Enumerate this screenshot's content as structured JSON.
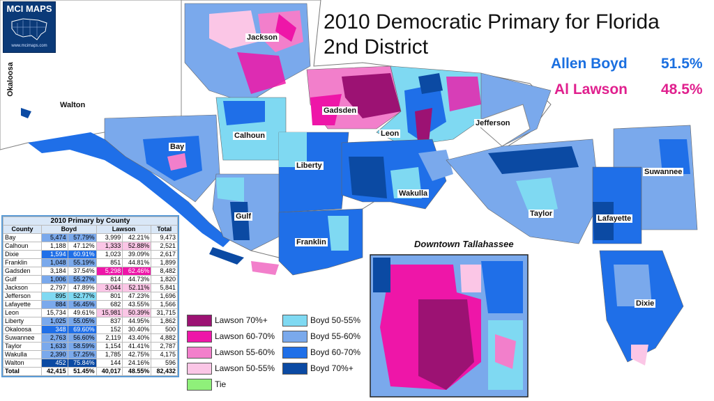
{
  "logo": {
    "text": "MCI MAPS",
    "url": "www.mcimaps.com"
  },
  "title": {
    "line1": "2010 Democratic Primary for Florida",
    "line2": "2nd District"
  },
  "candidates": [
    {
      "name": "Allen Boyd",
      "pct": "51.5%",
      "color": "#1a6fe0"
    },
    {
      "name": "Al Lawson",
      "pct": "48.5%",
      "color": "#e0208e"
    }
  ],
  "county_labels": {
    "okaloosa": "Okaloosa",
    "walton": "Walton",
    "jackson": "Jackson",
    "gadsden": "Gadsden",
    "calhoun": "Calhoun",
    "leon": "Leon",
    "jefferson": "Jefferson",
    "bay": "Bay",
    "liberty": "Liberty",
    "wakulla": "Wakulla",
    "suwannee": "Suwannee",
    "taylor": "Taylor",
    "lafayette": "Lafayette",
    "gulf": "Gulf",
    "franklin": "Franklin",
    "dixie": "Dixie"
  },
  "inset_title": "Downtown Tallahassee",
  "legend": [
    {
      "label": "Lawson 70%+",
      "color": "#9c1273"
    },
    {
      "label": "Lawson 60-70%",
      "color": "#ee16a8"
    },
    {
      "label": "Lawson 55-60%",
      "color": "#f27fcb"
    },
    {
      "label": "Lawson 50-55%",
      "color": "#fbc6e6"
    },
    {
      "label": "Tie",
      "color": "#8ff07a"
    },
    {
      "label": "Boyd 50-55%",
      "color": "#7fd9f2"
    },
    {
      "label": "Boyd 55-60%",
      "color": "#7aa9ec"
    },
    {
      "label": "Boyd 60-70%",
      "color": "#1f6fe8"
    },
    {
      "label": "Boyd 70%+",
      "color": "#0b4aa3"
    }
  ],
  "table": {
    "caption": "2010 Primary by County",
    "headers": [
      "County",
      "Boyd",
      "Lawson",
      "Total"
    ],
    "rows": [
      [
        "Bay",
        "5,474",
        "57.79%",
        "3,999",
        "42.21%",
        "9,473"
      ],
      [
        "Calhoun",
        "1,188",
        "47.12%",
        "1,333",
        "52.88%",
        "2,521"
      ],
      [
        "Dixie",
        "1,594",
        "60.91%",
        "1,023",
        "39.09%",
        "2,617"
      ],
      [
        "Franklin",
        "1,048",
        "55.19%",
        "851",
        "44.81%",
        "1,899"
      ],
      [
        "Gadsden",
        "3,184",
        "37.54%",
        "5,298",
        "62.46%",
        "8,482"
      ],
      [
        "Gulf",
        "1,006",
        "55.27%",
        "814",
        "44.73%",
        "1,820"
      ],
      [
        "Jackson",
        "2,797",
        "47.89%",
        "3,044",
        "52.11%",
        "5,841"
      ],
      [
        "Jefferson",
        "895",
        "52.77%",
        "801",
        "47.23%",
        "1,696"
      ],
      [
        "Lafayette",
        "884",
        "56.45%",
        "682",
        "43.55%",
        "1,566"
      ],
      [
        "Leon",
        "15,734",
        "49.61%",
        "15,981",
        "50.39%",
        "31,715"
      ],
      [
        "Liberty",
        "1,025",
        "55.05%",
        "837",
        "44.95%",
        "1,862"
      ],
      [
        "Okaloosa",
        "348",
        "69.60%",
        "152",
        "30.40%",
        "500"
      ],
      [
        "Suwannee",
        "2,763",
        "56.60%",
        "2,119",
        "43.40%",
        "4,882"
      ],
      [
        "Taylor",
        "1,633",
        "58.59%",
        "1,154",
        "41.41%",
        "2,787"
      ],
      [
        "Wakulla",
        "2,390",
        "57.25%",
        "1,785",
        "42.75%",
        "4,175"
      ],
      [
        "Walton",
        "452",
        "75.84%",
        "144",
        "24.16%",
        "596"
      ]
    ],
    "total": [
      "Total",
      "42,415",
      "51.45%",
      "40,017",
      "48.55%",
      "82,432"
    ]
  }
}
